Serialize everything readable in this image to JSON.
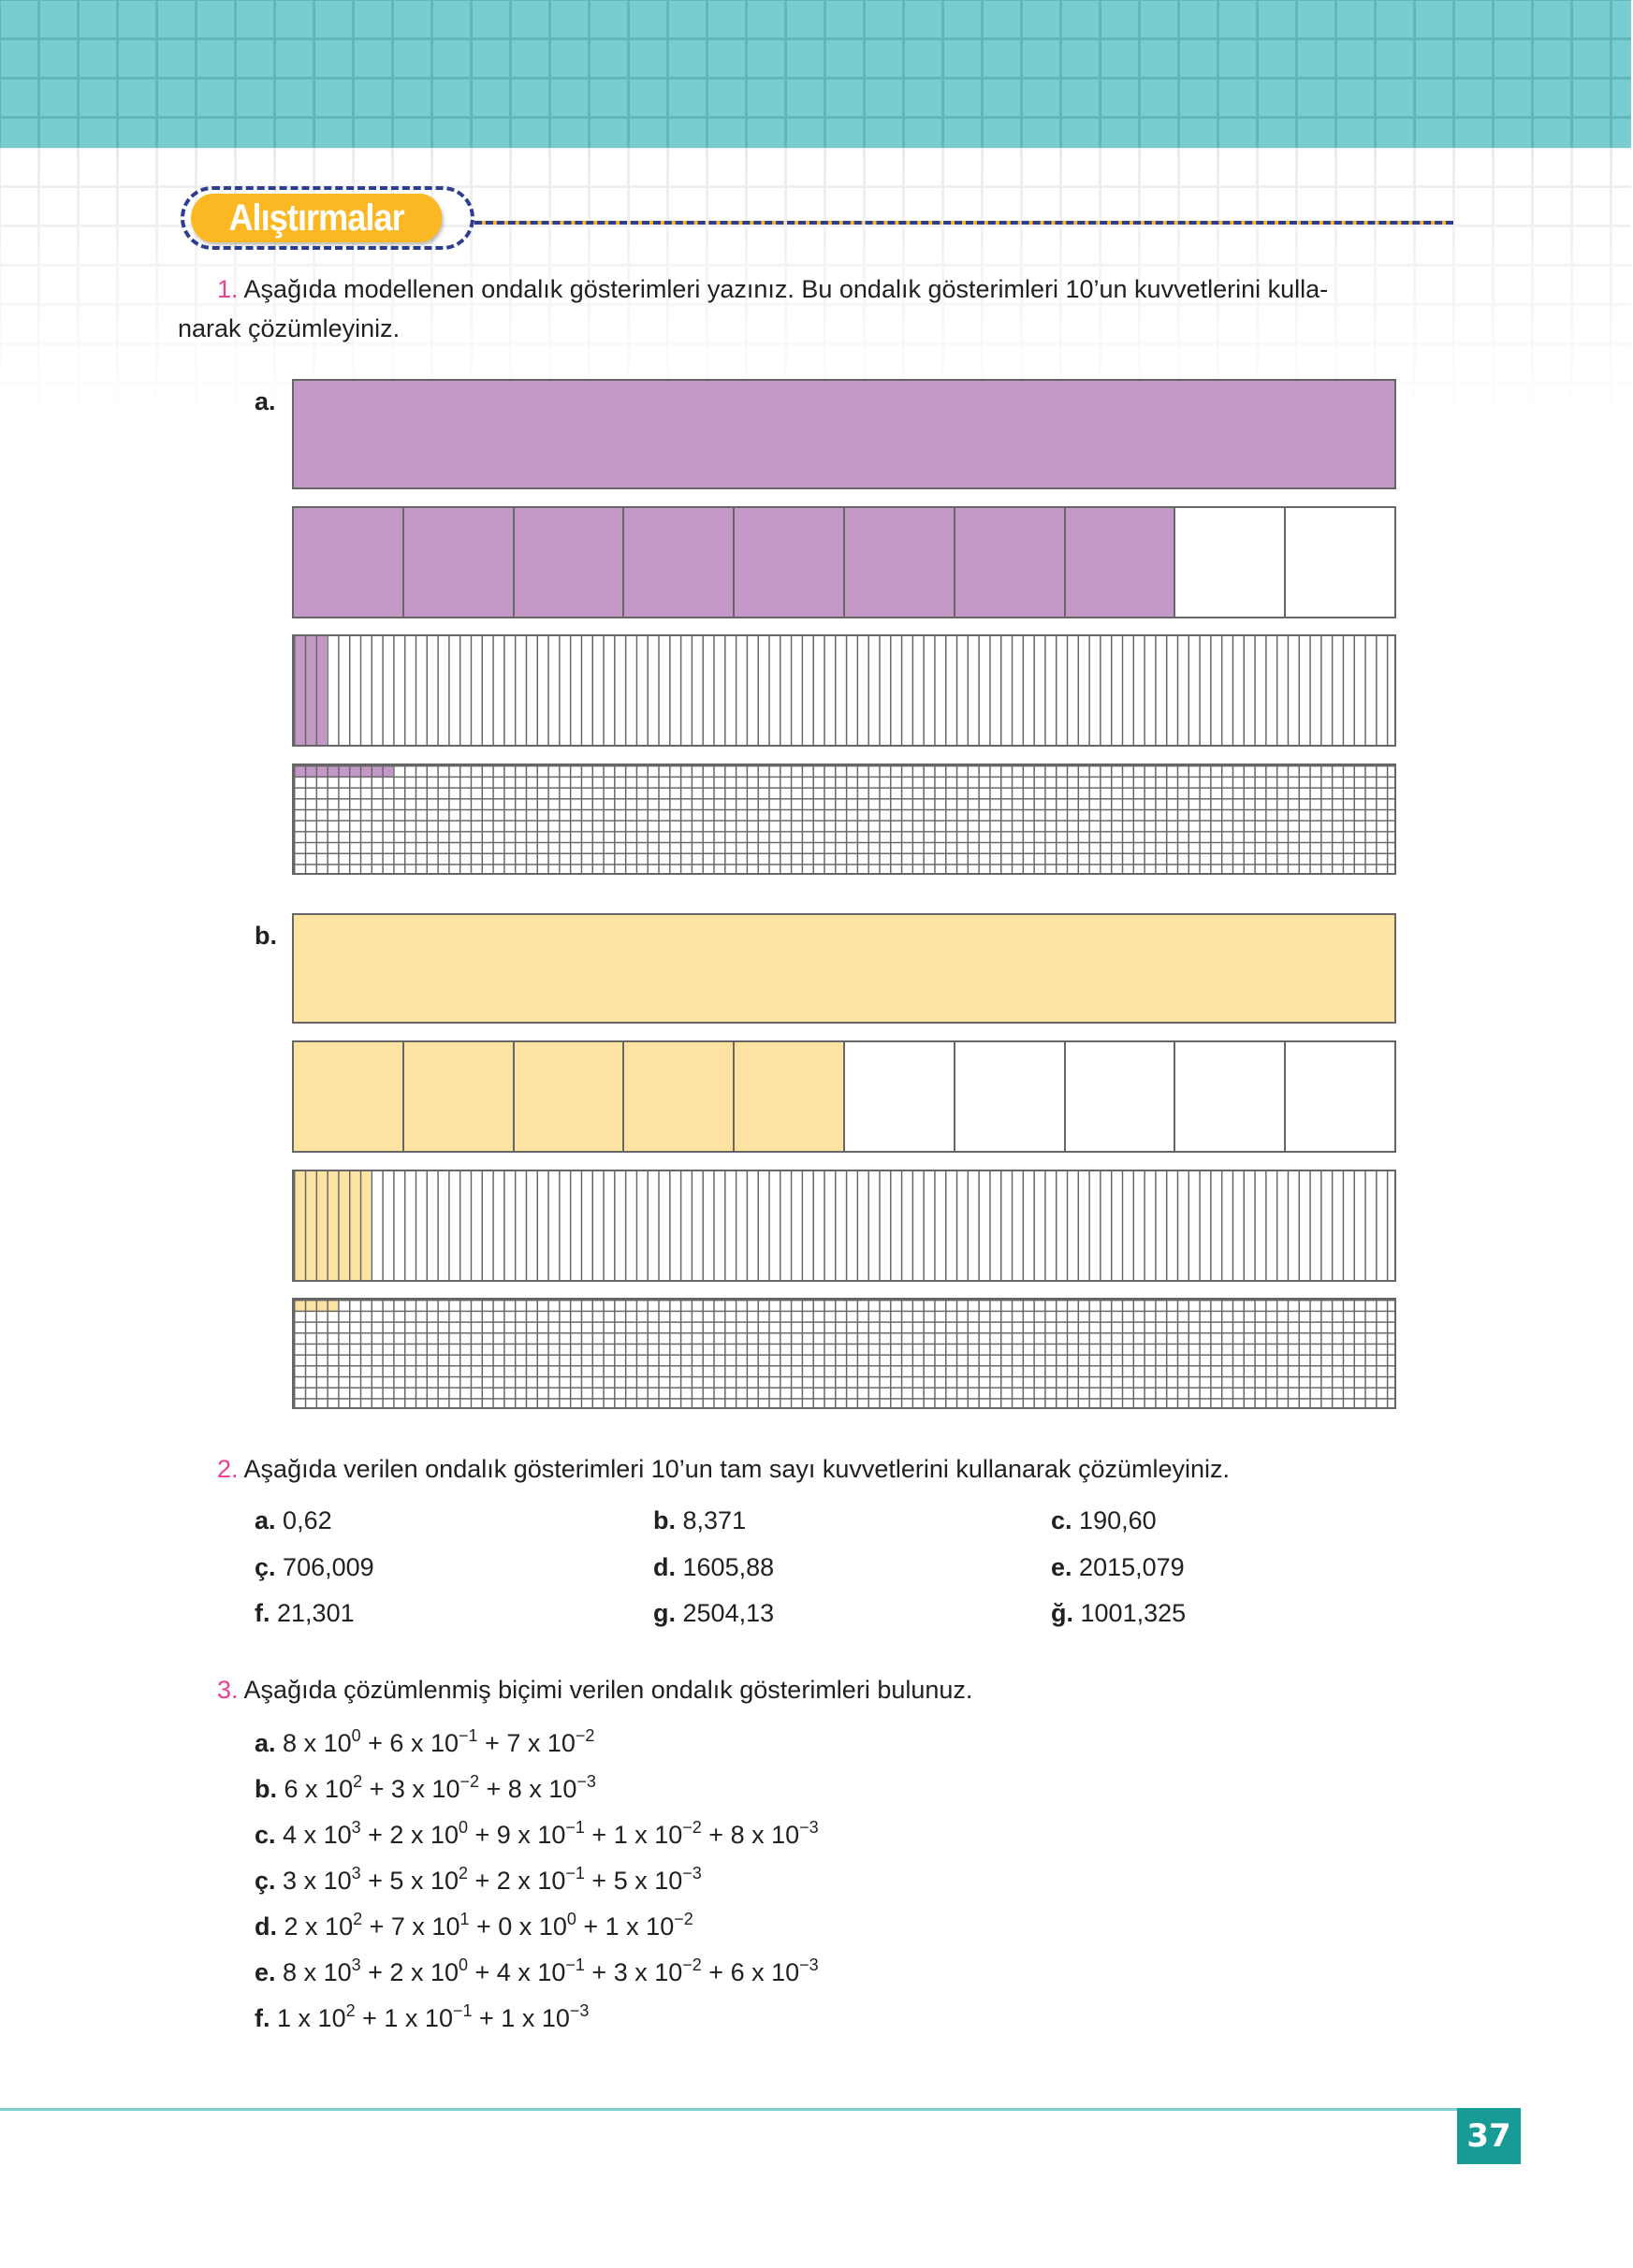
{
  "section_title": "Alıştırmalar",
  "page_number": "37",
  "colors": {
    "accent_pink": "#ec3f8f",
    "teal": "#169b96",
    "purple": "#c397c6",
    "yellow": "#fde3a2",
    "pill": "#fbb823"
  },
  "q1": {
    "number": "1.",
    "text_line1": "Aşağıda modellenen ondalık gösterimleri yazınız. Bu ondalık gösterimleri 10’un kuvvetlerini kulla-",
    "text_line2": "narak çözümleyiniz.",
    "models": [
      {
        "label": "a.",
        "fill": "#c397c6",
        "ones": 1,
        "tenths": 8,
        "hundredths": 3,
        "thousandths": 9
      },
      {
        "label": "b.",
        "fill": "#fde3a2",
        "ones": 1,
        "tenths": 5,
        "hundredths": 7,
        "thousandths": 4
      }
    ]
  },
  "q2": {
    "number": "2.",
    "text": "Aşağıda verilen ondalık gösterimleri 10’un tam sayı kuvvetlerini kullanarak çözümleyiniz.",
    "items": [
      {
        "label": "a.",
        "value": "0,62"
      },
      {
        "label": "b.",
        "value": "8,371"
      },
      {
        "label": "c.",
        "value": "190,60"
      },
      {
        "label": "ç.",
        "value": "706,009"
      },
      {
        "label": "d.",
        "value": "1605,88"
      },
      {
        "label": "e.",
        "value": "2015,079"
      },
      {
        "label": "f.",
        "value": "21,301"
      },
      {
        "label": "g.",
        "value": "2504,13"
      },
      {
        "label": "ğ.",
        "value": "1001,325"
      }
    ]
  },
  "q3": {
    "number": "3.",
    "text": "Aşağıda çözümlenmiş biçimi verilen ondalık gösterimleri bulunuz.",
    "items": [
      {
        "label": "a.",
        "terms": [
          [
            "8",
            "0"
          ],
          [
            "6",
            "−1"
          ],
          [
            "7",
            "−2"
          ]
        ]
      },
      {
        "label": "b.",
        "terms": [
          [
            "6",
            "2"
          ],
          [
            "3",
            "−2"
          ],
          [
            "8",
            "−3"
          ]
        ]
      },
      {
        "label": "c.",
        "terms": [
          [
            "4",
            "3"
          ],
          [
            "2",
            "0"
          ],
          [
            "9",
            "−1"
          ],
          [
            "1",
            "−2"
          ],
          [
            "8",
            "−3"
          ]
        ]
      },
      {
        "label": "ç.",
        "terms": [
          [
            "3",
            "3"
          ],
          [
            "5",
            "2"
          ],
          [
            "2",
            "−1"
          ],
          [
            "5",
            "−3"
          ]
        ]
      },
      {
        "label": "d.",
        "terms": [
          [
            "2",
            "2"
          ],
          [
            "7",
            "1"
          ],
          [
            "0",
            "0"
          ],
          [
            "1",
            "−2"
          ]
        ]
      },
      {
        "label": "e.",
        "terms": [
          [
            "8",
            "3"
          ],
          [
            "2",
            "0"
          ],
          [
            "4",
            "−1"
          ],
          [
            "3",
            "−2"
          ],
          [
            "6",
            "−3"
          ]
        ]
      },
      {
        "label": "f.",
        "terms": [
          [
            "1",
            "2"
          ],
          [
            "1",
            "−1"
          ],
          [
            "1",
            "−3"
          ]
        ]
      }
    ]
  }
}
